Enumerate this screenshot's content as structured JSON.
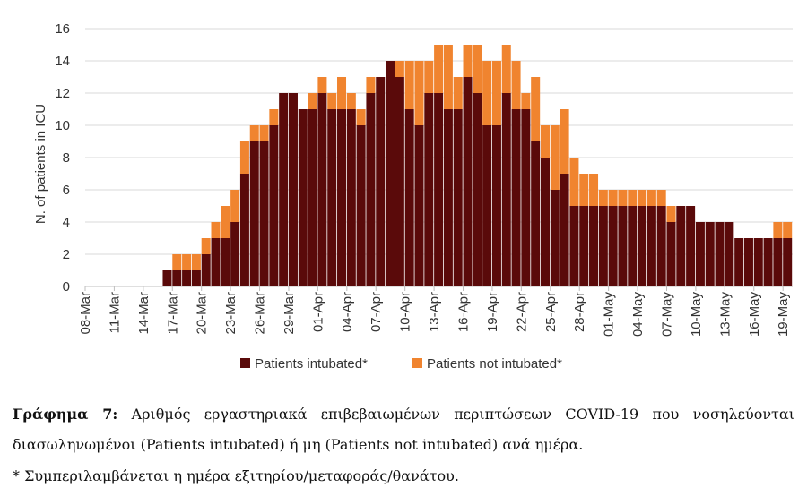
{
  "chart_data": {
    "type": "bar",
    "stacked": true,
    "ylabel": "N. of patients in ICU",
    "ylim": [
      0,
      16
    ],
    "yticks": [
      0,
      2,
      4,
      6,
      8,
      10,
      12,
      14,
      16
    ],
    "grid": true,
    "legend_position": "bottom",
    "categories": [
      "08-Mar",
      "09-Mar",
      "10-Mar",
      "11-Mar",
      "12-Mar",
      "13-Mar",
      "14-Mar",
      "15-Mar",
      "16-Mar",
      "17-Mar",
      "18-Mar",
      "19-Mar",
      "20-Mar",
      "21-Mar",
      "22-Mar",
      "23-Mar",
      "24-Mar",
      "25-Mar",
      "26-Mar",
      "27-Mar",
      "28-Mar",
      "29-Mar",
      "30-Mar",
      "31-Mar",
      "01-Apr",
      "02-Apr",
      "03-Apr",
      "04-Apr",
      "05-Apr",
      "06-Apr",
      "07-Apr",
      "08-Apr",
      "09-Apr",
      "10-Apr",
      "11-Apr",
      "12-Apr",
      "13-Apr",
      "14-Apr",
      "15-Apr",
      "16-Apr",
      "17-Apr",
      "18-Apr",
      "19-Apr",
      "20-Apr",
      "21-Apr",
      "22-Apr",
      "23-Apr",
      "24-Apr",
      "25-Apr",
      "26-Apr",
      "27-Apr",
      "28-Apr",
      "29-Apr",
      "30-Apr",
      "01-May",
      "02-May",
      "03-May",
      "04-May",
      "05-May",
      "06-May",
      "07-May",
      "08-May",
      "09-May",
      "10-May",
      "11-May",
      "12-May",
      "13-May",
      "14-May",
      "15-May",
      "16-May",
      "17-May",
      "18-May",
      "19-May"
    ],
    "tick_labels": [
      "08-Mar",
      "11-Mar",
      "14-Mar",
      "17-Mar",
      "20-Mar",
      "23-Mar",
      "26-Mar",
      "29-Mar",
      "01-Apr",
      "04-Apr",
      "07-Apr",
      "10-Apr",
      "13-Apr",
      "16-Apr",
      "19-Apr",
      "22-Apr",
      "25-Apr",
      "28-Apr",
      "01-May",
      "04-May",
      "07-May",
      "10-May",
      "13-May",
      "16-May",
      "19-May"
    ],
    "series": [
      {
        "name": "Patients intubated*",
        "color": "#5a0a0a",
        "values": [
          0,
          0,
          0,
          0,
          0,
          0,
          0,
          0,
          1,
          1,
          1,
          1,
          2,
          3,
          3,
          4,
          7,
          9,
          9,
          10,
          12,
          12,
          11,
          11,
          12,
          11,
          11,
          11,
          10,
          12,
          13,
          14,
          13,
          11,
          10,
          12,
          12,
          11,
          11,
          13,
          12,
          10,
          10,
          12,
          11,
          11,
          9,
          8,
          6,
          7,
          5,
          5,
          5,
          5,
          5,
          5,
          5,
          5,
          5,
          5,
          4,
          5,
          5,
          4,
          4,
          4,
          4,
          3,
          3,
          3,
          3,
          3,
          3
        ]
      },
      {
        "name": "Patients not intubated*",
        "color": "#f0842f",
        "values": [
          0,
          0,
          0,
          0,
          0,
          0,
          0,
          0,
          0,
          1,
          1,
          1,
          1,
          1,
          2,
          2,
          2,
          1,
          1,
          1,
          0,
          0,
          0,
          1,
          1,
          1,
          2,
          1,
          1,
          1,
          0,
          0,
          1,
          3,
          4,
          2,
          3,
          4,
          2,
          2,
          3,
          4,
          4,
          3,
          3,
          1,
          4,
          2,
          4,
          4,
          3,
          2,
          2,
          1,
          1,
          1,
          1,
          1,
          1,
          1,
          1,
          0,
          0,
          0,
          0,
          0,
          0,
          0,
          0,
          0,
          0,
          1,
          1
        ]
      }
    ]
  },
  "caption": {
    "label": "Γράφημα 7:",
    "line1": "Αριθμός εργαστηριακά επιβεβαιωμένων περιπτώσεων COVID-19 που νοσηλεύονται",
    "line2": "διασωληνωμένοι (Patients intubated) ή μη (Patients not intubated) ανά ημέρα.",
    "note": "* Συμπεριλαμβάνεται η ημέρα εξιτηρίου/μεταφοράς/θανάτου."
  }
}
